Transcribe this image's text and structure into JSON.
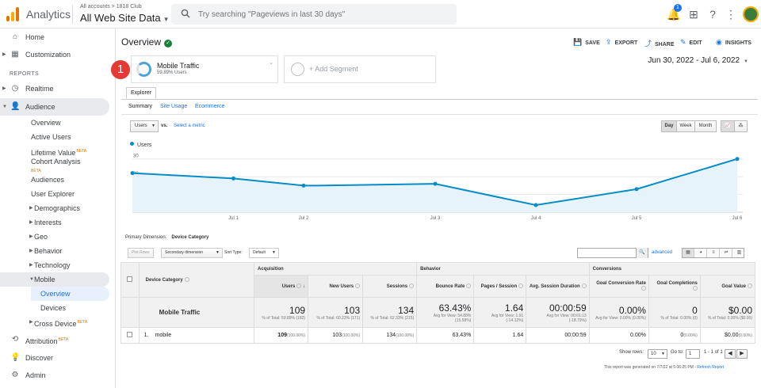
{
  "app": {
    "title": "Analytics",
    "account_crumb": "All accounts > 1818 Club",
    "view_name": "All Web Site Data"
  },
  "search": {
    "placeholder": "Try searching \"Pageviews in last 30 days\""
  },
  "topbar": {
    "notification_count": "1"
  },
  "sidebar": {
    "home": "Home",
    "customization": "Customization",
    "reports_heading": "REPORTS",
    "realtime": "Realtime",
    "audience": "Audience",
    "audience_items": [
      "Overview",
      "Active Users",
      "Lifetime Value",
      "Cohort Analysis",
      "Audiences",
      "User Explorer",
      "Demographics",
      "Interests",
      "Geo",
      "Behavior",
      "Technology",
      "Mobile"
    ],
    "mobile_items": [
      "Overview",
      "Devices"
    ],
    "cross_device": "Cross Device",
    "beta_label": "BETA",
    "attribution": "Attribution",
    "discover": "Discover",
    "admin": "Admin"
  },
  "header": {
    "title": "Overview",
    "actions": {
      "save": "SAVE",
      "export": "EXPORT",
      "share": "SHARE",
      "edit": "EDIT",
      "insights": "INSIGHTS"
    },
    "step_badge": "1"
  },
  "segments": {
    "active_name": "Mobile Traffic",
    "active_sub": "59.89% Users",
    "add_label": "+ Add Segment"
  },
  "date_range": "Jun 30, 2022 - Jul 6, 2022",
  "explorer": {
    "tab": "Explorer",
    "subtabs": [
      "Summary",
      "Site Usage",
      "Ecommerce"
    ],
    "metric": "Users",
    "vs": "vs.",
    "select_metric": "Select a metric",
    "periods": [
      "Day",
      "Week",
      "Month"
    ]
  },
  "chart_data": {
    "type": "area",
    "series": [
      {
        "name": "Users",
        "values": [
          22,
          19,
          15,
          15,
          16,
          4,
          13,
          30
        ]
      }
    ],
    "x": [
      "Jun 30",
      "Jul 1",
      "Jul 2",
      "Jul 2.5",
      "Jul 3",
      "Jul 4",
      "Jul 5",
      "Jul 6"
    ],
    "x_tick_labels": [
      "Jul 1",
      "Jul 2",
      "Jul 3",
      "Jul 4",
      "Jul 5",
      "Jul 6"
    ],
    "y_ticks": [
      10,
      20,
      30
    ],
    "ylim": [
      0,
      33
    ],
    "color": "#058dc7",
    "fill": "#e6f3fa",
    "grid": true
  },
  "table_controls": {
    "primary_dimension_label": "Primary Dimension:",
    "primary_dimension": "Device Category",
    "plot_rows": "Plot Rows",
    "secondary_dimension": "Secondary dimension",
    "sort_type_label": "Sort Type:",
    "sort_type": "Default",
    "advanced": "advanced"
  },
  "table": {
    "groups": {
      "acquisition": "Acquisition",
      "behavior": "Behavior",
      "conversions": "Conversions"
    },
    "dimension_header": "Device Category",
    "columns": [
      "Users",
      "New Users",
      "Sessions",
      "Bounce Rate",
      "Pages / Session",
      "Avg. Session Duration",
      "Goal Conversion Rate",
      "Goal Completions",
      "Goal Value"
    ],
    "totals": {
      "name": "Mobile Traffic",
      "values": [
        "109",
        "103",
        "134",
        "63.43%",
        "1.64",
        "00:00:59",
        "0.00%",
        "0",
        "$0.00"
      ],
      "subs": [
        "% of Total: 59.89% (182)",
        "% of Total: 60.23% (171)",
        "% of Total: 62.33% (215)",
        "Avg for View: 54.88% (15.58%)",
        "Avg for View: 1.91 (-14.12%)",
        "Avg for View: 00:01:13 (-18.79%)",
        "Avg for View: 0.00% (0.00%)",
        "% of Total: 0.00% (0)",
        "% of Total: 0.00% ($0.00)"
      ]
    },
    "rows": [
      {
        "index": "1.",
        "name": "mobile",
        "users": "109",
        "users_pct": "(100.00%)",
        "new_users": "103",
        "new_users_pct": "(100.00%)",
        "sessions": "134",
        "sessions_pct": "(100.00%)",
        "bounce": "63.43%",
        "pages": "1.64",
        "duration": "00:00:59",
        "gcr": "0.00%",
        "gc": "0",
        "gc_pct": "(0.00%)",
        "gv": "$0.00",
        "gv_pct": "(0.00%)"
      }
    ]
  },
  "pager": {
    "show_rows_label": "Show rows:",
    "show_rows": "10",
    "goto_label": "Go to:",
    "goto": "1",
    "range": "1 - 1 of 1"
  },
  "footnote": {
    "text": "This report was generated on 7/7/22 at 5:06:25 PM - ",
    "link": "Refresh Report"
  }
}
